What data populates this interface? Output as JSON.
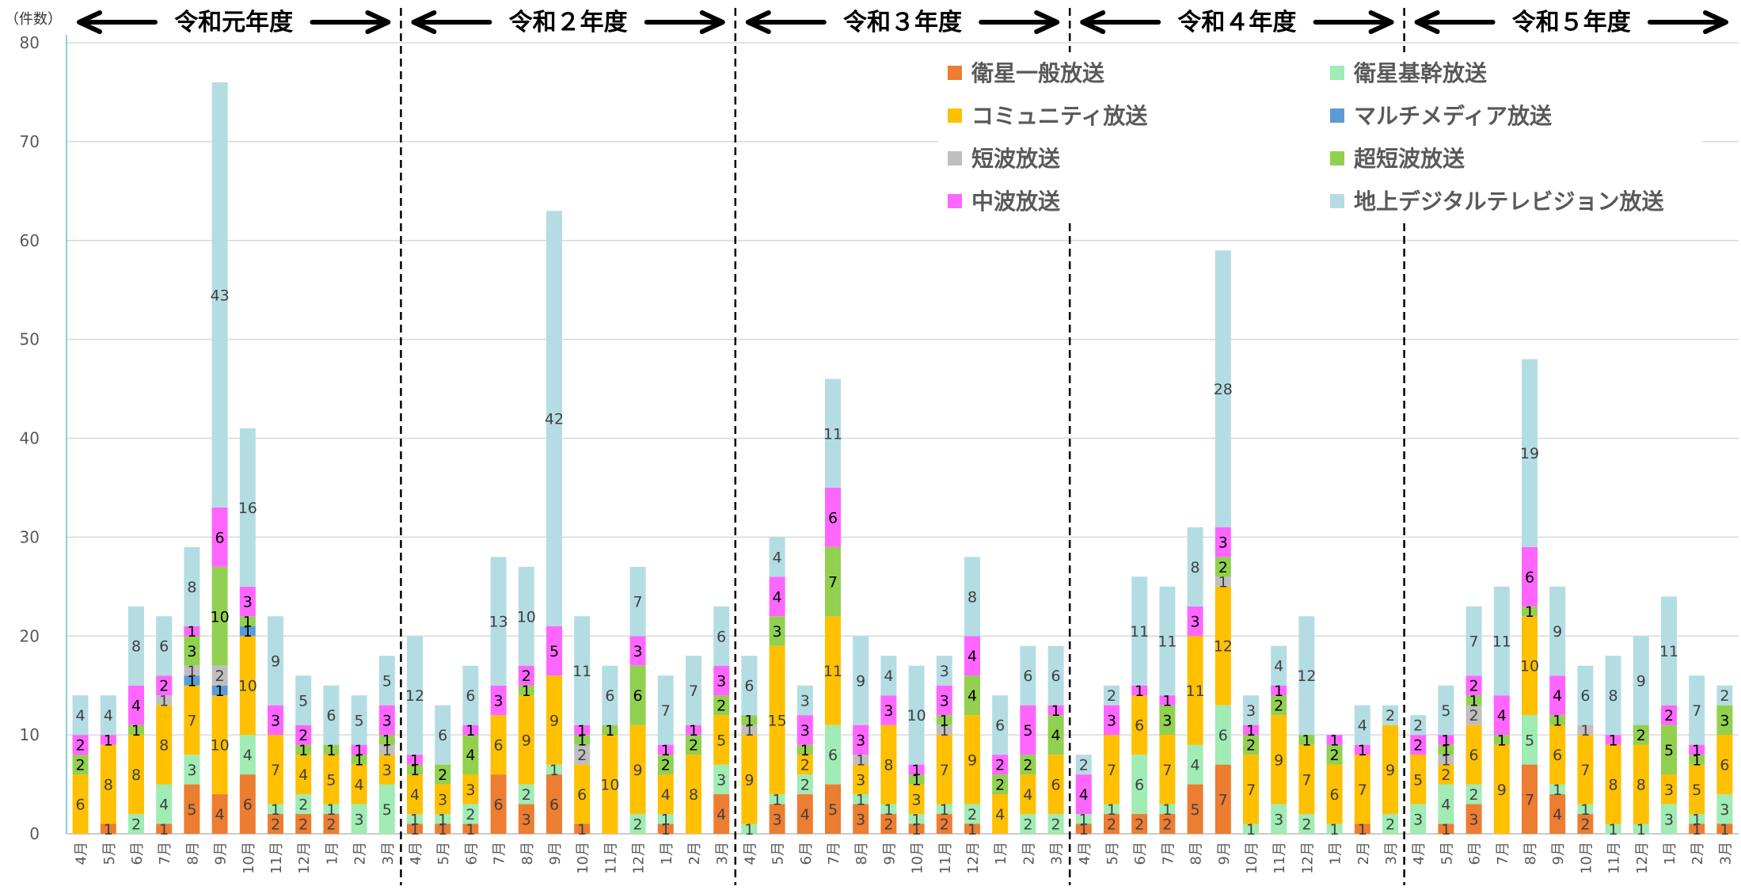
{
  "chart_data": {
    "type": "bar",
    "stacked": true,
    "y_unit": "（件数）",
    "ylim": [
      0,
      80
    ],
    "yticks": [
      0,
      10,
      20,
      30,
      40,
      50,
      60,
      70,
      80
    ],
    "grid": true,
    "legend_position": "top-right",
    "fiscal_years": [
      "令和元年度",
      "令和２年度",
      "令和３年度",
      "令和４年度",
      "令和５年度"
    ],
    "categories": [
      "4月",
      "5月",
      "6月",
      "7月",
      "8月",
      "9月",
      "10月",
      "11月",
      "12月",
      "1月",
      "2月",
      "3月",
      "4月",
      "5月",
      "6月",
      "7月",
      "8月",
      "9月",
      "10月",
      "11月",
      "12月",
      "1月",
      "2月",
      "3月",
      "4月",
      "5月",
      "6月",
      "7月",
      "8月",
      "9月",
      "10月",
      "11月",
      "12月",
      "1月",
      "2月",
      "3月",
      "4月",
      "5月",
      "6月",
      "7月",
      "8月",
      "9月",
      "10月",
      "11月",
      "12月",
      "1月",
      "2月",
      "3月",
      "4月",
      "5月",
      "6月",
      "7月",
      "8月",
      "9月",
      "10月",
      "11月",
      "12月",
      "1月",
      "2月",
      "3月"
    ],
    "series": [
      {
        "name": "衛星一般放送",
        "color": "#ED7D31",
        "values": [
          0,
          1,
          0,
          1,
          5,
          4,
          6,
          2,
          2,
          2,
          0,
          0,
          1,
          1,
          1,
          6,
          3,
          6,
          1,
          0,
          0,
          1,
          0,
          4,
          0,
          3,
          4,
          5,
          3,
          2,
          1,
          2,
          1,
          0,
          0,
          0,
          1,
          2,
          2,
          2,
          5,
          7,
          0,
          0,
          0,
          0,
          1,
          0,
          0,
          1,
          3,
          0,
          7,
          4,
          2,
          0,
          0,
          0,
          1,
          1
        ]
      },
      {
        "name": "衛星基幹放送",
        "color": "#A0ECB4",
        "values": [
          0,
          0,
          2,
          4,
          3,
          0,
          4,
          1,
          2,
          1,
          3,
          5,
          1,
          1,
          2,
          0,
          2,
          1,
          0,
          0,
          2,
          1,
          0,
          3,
          1,
          1,
          2,
          6,
          1,
          1,
          1,
          1,
          2,
          0,
          2,
          2,
          1,
          1,
          6,
          1,
          4,
          6,
          1,
          3,
          2,
          1,
          0,
          2,
          3,
          4,
          2,
          0,
          5,
          1,
          1,
          1,
          1,
          3,
          1,
          3
        ]
      },
      {
        "name": "コミュニティ放送",
        "color": "#FFC000",
        "values": [
          6,
          8,
          8,
          8,
          7,
          10,
          10,
          7,
          4,
          5,
          4,
          3,
          4,
          3,
          3,
          6,
          9,
          9,
          6,
          10,
          9,
          4,
          8,
          5,
          9,
          15,
          2,
          11,
          3,
          8,
          3,
          7,
          9,
          4,
          4,
          6,
          0,
          7,
          6,
          7,
          11,
          12,
          7,
          9,
          7,
          6,
          7,
          9,
          5,
          2,
          6,
          9,
          10,
          6,
          7,
          8,
          8,
          3,
          5,
          6
        ]
      },
      {
        "name": "マルチメディア放送",
        "color": "#5B9BD5",
        "values": [
          0,
          0,
          0,
          0,
          1,
          1,
          1,
          0,
          0,
          0,
          0,
          0,
          0,
          0,
          0,
          0,
          0,
          0,
          0,
          0,
          0,
          0,
          0,
          0,
          0,
          0,
          0,
          0,
          0,
          0,
          0,
          0,
          0,
          0,
          0,
          0,
          0,
          0,
          0,
          0,
          0,
          0,
          0,
          0,
          0,
          0,
          0,
          0,
          0,
          0,
          0,
          0,
          0,
          0,
          0,
          0,
          0,
          0,
          0,
          0
        ]
      },
      {
        "name": "短波放送",
        "color": "#BFBFBF",
        "values": [
          0,
          0,
          0,
          1,
          1,
          2,
          0,
          0,
          0,
          0,
          0,
          1,
          0,
          0,
          0,
          0,
          0,
          0,
          2,
          0,
          0,
          0,
          0,
          0,
          1,
          0,
          0,
          0,
          1,
          0,
          0,
          1,
          0,
          0,
          0,
          0,
          0,
          0,
          0,
          0,
          0,
          1,
          0,
          0,
          0,
          0,
          0,
          0,
          0,
          1,
          2,
          0,
          0,
          0,
          1,
          0,
          0,
          0,
          0,
          0
        ]
      },
      {
        "name": "超短波放送",
        "color": "#92D050",
        "values": [
          2,
          0,
          1,
          0,
          3,
          10,
          1,
          0,
          1,
          1,
          1,
          1,
          1,
          2,
          4,
          0,
          1,
          0,
          1,
          1,
          6,
          2,
          2,
          2,
          1,
          3,
          1,
          7,
          0,
          0,
          1,
          1,
          4,
          2,
          2,
          4,
          0,
          0,
          0,
          3,
          0,
          2,
          2,
          2,
          1,
          2,
          0,
          0,
          0,
          1,
          1,
          1,
          1,
          1,
          0,
          0,
          2,
          5,
          1,
          3
        ]
      },
      {
        "name": "中波放送",
        "color": "#FF66FF",
        "values": [
          2,
          1,
          4,
          2,
          1,
          6,
          3,
          3,
          2,
          0,
          1,
          3,
          1,
          0,
          1,
          3,
          2,
          5,
          1,
          0,
          3,
          1,
          1,
          3,
          0,
          4,
          3,
          6,
          3,
          3,
          1,
          3,
          4,
          2,
          5,
          1,
          4,
          3,
          1,
          1,
          3,
          3,
          1,
          1,
          0,
          1,
          1,
          0,
          2,
          1,
          2,
          4,
          6,
          4,
          0,
          1,
          0,
          2,
          1,
          0
        ]
      },
      {
        "name": "地上デジタルテレビジョン放送",
        "color": "#B4DDE3",
        "values": [
          4,
          4,
          8,
          6,
          8,
          43,
          16,
          9,
          5,
          6,
          5,
          5,
          12,
          6,
          6,
          13,
          10,
          42,
          11,
          6,
          7,
          7,
          7,
          6,
          6,
          4,
          3,
          11,
          9,
          4,
          10,
          3,
          8,
          6,
          6,
          6,
          2,
          2,
          11,
          11,
          8,
          28,
          3,
          4,
          12,
          0,
          4,
          2,
          2,
          5,
          7,
          11,
          19,
          9,
          6,
          8,
          9,
          11,
          7,
          2
        ]
      }
    ]
  }
}
